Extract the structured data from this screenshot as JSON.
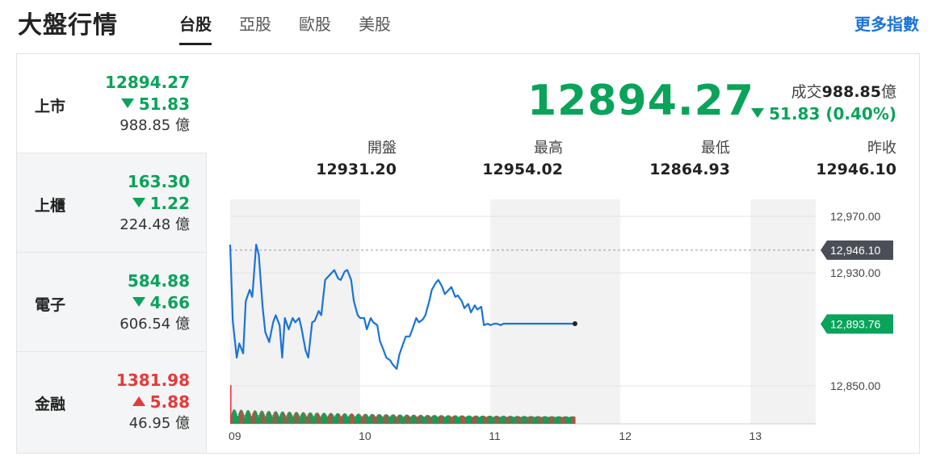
{
  "header": {
    "title": "大盤行情",
    "tabs": [
      {
        "label": "台股",
        "active": true
      },
      {
        "label": "亞股",
        "active": false
      },
      {
        "label": "歐股",
        "active": false
      },
      {
        "label": "美股",
        "active": false
      }
    ],
    "more_link": "更多指數"
  },
  "sidebar": {
    "items": [
      {
        "name": "上市",
        "price": "12894.27",
        "change": "51.83",
        "direction": "down",
        "volume": "988.85 億"
      },
      {
        "name": "上櫃",
        "price": "163.30",
        "change": "1.22",
        "direction": "down",
        "volume": "224.48 億"
      },
      {
        "name": "電子",
        "price": "584.88",
        "change": "4.66",
        "direction": "down",
        "volume": "606.54 億"
      },
      {
        "name": "金融",
        "price": "1381.98",
        "change": "5.88",
        "direction": "up",
        "volume": "46.95 億"
      }
    ]
  },
  "summary": {
    "price": "12894.27",
    "turnover_label": "成交",
    "turnover_value": "988.85",
    "turnover_unit": "億",
    "change": "51.83 (0.40%)",
    "stats": [
      {
        "label": "開盤",
        "value": "12931.20"
      },
      {
        "label": "最高",
        "value": "12954.02"
      },
      {
        "label": "最低",
        "value": "12864.93"
      },
      {
        "label": "昨收",
        "value": "12946.10"
      }
    ]
  },
  "colors": {
    "down": "#0aa35a",
    "up": "#e53a3a",
    "line": "#1a73d9",
    "link": "#1a73d9",
    "prev_close_tag": "#4a4f57"
  },
  "chart_data": {
    "type": "line",
    "x_ticks": [
      "09",
      "10",
      "11",
      "12",
      "13"
    ],
    "y_ticks": [
      "12,970.00",
      "12,930.00",
      "12,850.00"
    ],
    "y_tick_values": [
      12970,
      12930,
      12850
    ],
    "ylim": [
      12830,
      12982
    ],
    "x_range_hours": [
      9,
      13.5
    ],
    "prev_close": 12946.1,
    "prev_close_label": "12,946.10",
    "last_value": 12893.76,
    "last_label": "12,893.76",
    "series": [
      {
        "x": [
          9.0,
          9.02,
          9.05,
          9.07,
          9.1,
          9.12,
          9.15,
          9.17,
          9.2,
          9.22,
          9.25,
          9.27,
          9.3,
          9.33,
          9.35,
          9.38,
          9.4,
          9.42,
          9.45,
          9.48,
          9.5,
          9.53,
          9.55,
          9.58,
          9.6,
          9.63,
          9.65,
          9.68,
          9.7,
          9.73,
          9.75,
          9.78,
          9.8,
          9.83,
          9.85,
          9.88,
          9.9,
          9.93,
          9.95,
          9.98,
          10.0,
          10.03,
          10.05,
          10.08,
          10.1,
          10.13,
          10.15,
          10.18,
          10.2,
          10.23,
          10.25,
          10.28,
          10.3,
          10.33,
          10.35,
          10.38,
          10.4,
          10.43,
          10.45,
          10.48,
          10.5,
          10.53,
          10.55,
          10.58,
          10.6,
          10.63,
          10.65,
          10.68,
          10.7,
          10.73,
          10.75,
          10.78,
          10.8,
          10.83,
          10.85,
          10.88,
          10.9,
          10.93,
          10.95,
          10.98,
          11.0,
          11.03,
          11.05,
          11.08,
          11.1,
          11.13,
          11.15,
          11.18,
          11.2,
          11.23,
          11.25,
          11.28,
          11.3,
          11.33,
          11.35,
          11.38,
          11.4,
          11.43,
          11.45,
          11.48,
          11.5,
          11.53,
          11.55,
          11.58,
          11.6,
          11.63,
          11.65
        ],
        "y": [
          12950,
          12896,
          12870,
          12880,
          12873,
          12910,
          12918,
          12913,
          12950,
          12943,
          12905,
          12888,
          12881,
          12895,
          12900,
          12893,
          12870,
          12898,
          12890,
          12898,
          12895,
          12898,
          12890,
          12875,
          12870,
          12895,
          12896,
          12903,
          12900,
          12925,
          12927,
          12930,
          12932,
          12926,
          12925,
          12931,
          12932,
          12925,
          12910,
          12900,
          12898,
          12898,
          12890,
          12898,
          12895,
          12893,
          12882,
          12875,
          12870,
          12868,
          12865,
          12862,
          12872,
          12880,
          12885,
          12885,
          12890,
          12898,
          12895,
          12897,
          12900,
          12910,
          12918,
          12923,
          12925,
          12920,
          12915,
          12918,
          12920,
          12913,
          12914,
          12910,
          12905,
          12908,
          12902,
          12907,
          12904,
          12906,
          12893,
          12894,
          12893,
          12894,
          12894,
          12893,
          12894,
          12894,
          12894,
          12894,
          12894,
          12894,
          12894,
          12894,
          12894,
          12894,
          12894,
          12894,
          12894,
          12894,
          12894,
          12894,
          12894,
          12894,
          12894,
          12894,
          12894,
          12894,
          12894
        ]
      }
    ]
  }
}
